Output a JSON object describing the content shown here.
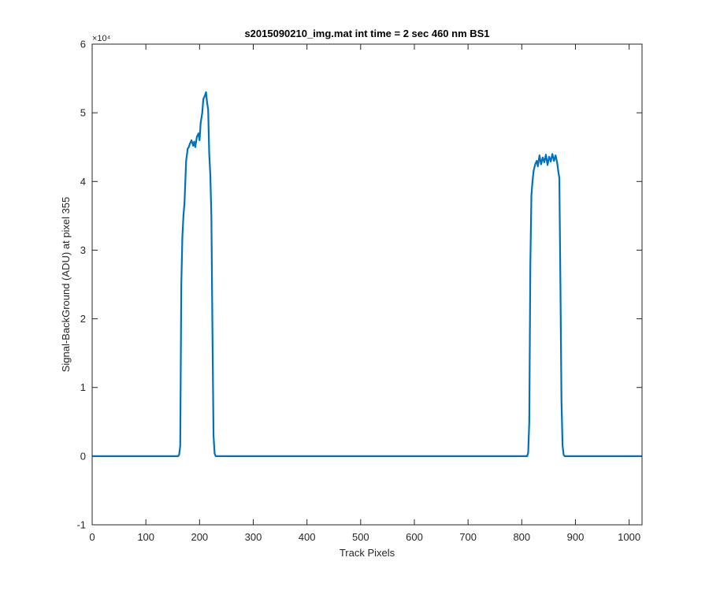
{
  "chart_data": {
    "type": "line",
    "title": "s2015090210_img.mat int time = 2 sec  460 nm BS1",
    "xlabel": "Track Pixels",
    "ylabel": "Signal-BackGround (ADU) at pixel 355",
    "xlim": [
      0,
      1024
    ],
    "ylim": [
      -10000,
      60000
    ],
    "xticks": [
      0,
      100,
      200,
      300,
      400,
      500,
      600,
      700,
      800,
      900,
      1000
    ],
    "yticks": [
      -1,
      0,
      1,
      2,
      3,
      4,
      5,
      6
    ],
    "y_multiplier": "×10⁴",
    "y_tick_scale": 10000,
    "grid": false,
    "box": true,
    "line_color": "#0072BD",
    "series": [
      {
        "x": [
          0,
          150,
          160,
          162,
          164,
          166,
          168,
          170,
          172,
          175,
          178,
          180,
          182,
          185,
          188,
          190,
          192,
          195,
          198,
          200,
          202,
          205,
          207,
          210,
          212,
          214,
          216,
          218,
          220,
          222,
          224,
          226,
          228,
          230,
          235,
          400,
          600,
          800,
          810,
          812,
          814,
          816,
          818,
          820,
          822,
          825,
          828,
          830,
          833,
          836,
          839,
          842,
          845,
          848,
          851,
          854,
          857,
          860,
          863,
          866,
          868,
          870,
          872,
          874,
          876,
          878,
          880,
          900,
          1024
        ],
        "y": [
          0,
          0,
          0,
          200,
          1500,
          25000,
          32000,
          35000,
          37000,
          43000,
          44800,
          45000,
          45500,
          46000,
          45200,
          45800,
          45000,
          46500,
          47000,
          46000,
          48500,
          50000,
          52000,
          52500,
          53000,
          51500,
          50500,
          44000,
          41000,
          35000,
          18000,
          3000,
          400,
          0,
          0,
          0,
          0,
          0,
          0,
          500,
          5000,
          28000,
          38000,
          40000,
          41500,
          42500,
          43000,
          42200,
          43800,
          42500,
          43500,
          42800,
          43900,
          42400,
          43600,
          42900,
          44000,
          43000,
          43800,
          42700,
          41500,
          40500,
          25000,
          8000,
          1500,
          200,
          0,
          0,
          0
        ]
      }
    ]
  }
}
